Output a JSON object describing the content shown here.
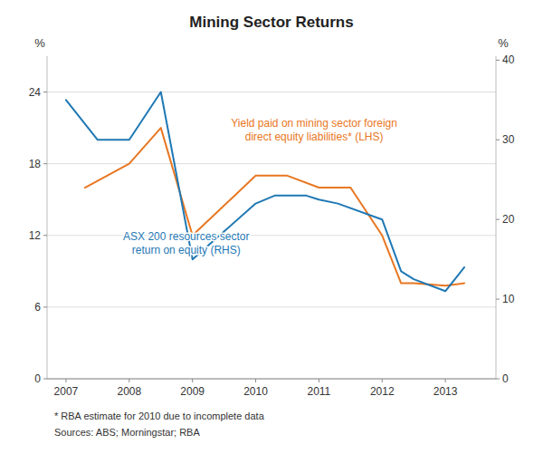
{
  "chart_data": {
    "type": "line",
    "title": "Mining Sector Returns",
    "ylabel": "%",
    "y2label": "%",
    "footnote": "*    RBA estimate for 2010 due to incomplete data",
    "source": "Sources: ABS; Morningstar; RBA",
    "xlim": [
      2006.7,
      2013.8
    ],
    "xticks": [
      2007,
      2008,
      2009,
      2010,
      2011,
      2012,
      2013
    ],
    "ylim": [
      0,
      27
    ],
    "yticks": [
      0,
      6,
      12,
      18,
      24
    ],
    "y2lim": [
      0,
      40.5
    ],
    "y2ticks": [
      0,
      10,
      20,
      30,
      40
    ],
    "grid": true,
    "series": [
      {
        "name": "Yield paid on mining sector foreign\ndirect equity liabilities* (LHS)",
        "color": "#E87722",
        "x": [
          2007.3,
          2008.0,
          2008.5,
          2009.0,
          2010.0,
          2010.5,
          2011.0,
          2011.5,
          2012.0,
          2012.3,
          2012.5,
          2013.0,
          2013.3
        ],
        "values": [
          16.0,
          18.0,
          21.0,
          12.0,
          17.0,
          17.0,
          16.0,
          16.0,
          12.0,
          8.0,
          8.0,
          7.8,
          8.0
        ]
      },
      {
        "name": "ASX 200 resources sector\nreturn on equity (RHS)",
        "color": "#1F78B4",
        "axis": "y2",
        "x": [
          2007.0,
          2007.5,
          2008.0,
          2008.5,
          2009.0,
          2010.0,
          2010.3,
          2010.8,
          2011.0,
          2011.3,
          2012.0,
          2012.3,
          2012.5,
          2013.0,
          2013.3
        ],
        "values": [
          35.0,
          30.0,
          30.0,
          36.0,
          15.0,
          22.0,
          23.0,
          23.0,
          22.5,
          22.0,
          20.0,
          13.5,
          12.5,
          11.0,
          14.0
        ]
      }
    ]
  }
}
